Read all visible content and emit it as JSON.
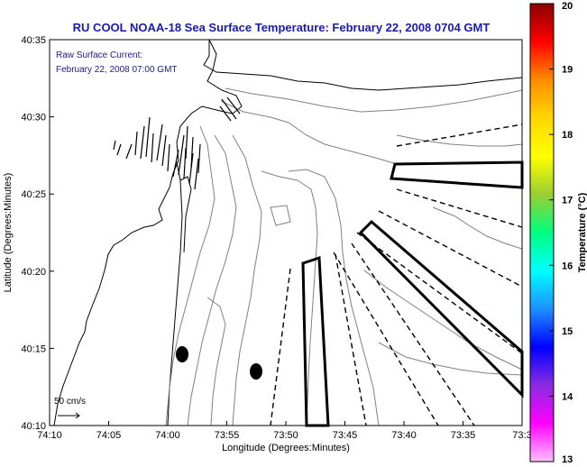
{
  "title": "RU COOL  NOAA-18  Sea Surface Temperature:  February 22, 2008 0704 GMT",
  "overlay": {
    "line1": "Raw Surface Current:",
    "line2": "February 22, 2008 07:00 GMT"
  },
  "scale_label": "50 cm/s",
  "axes": {
    "xlabel": "Longitude (Degrees:Minutes)",
    "ylabel": "Latitude (Degrees:Minutes)",
    "x_ticks": [
      "74:10",
      "74:05",
      "74:00",
      "73:55",
      "73:50",
      "73:45",
      "73:40",
      "73:35",
      "73:3"
    ],
    "y_ticks": [
      "40:35",
      "40:30",
      "40:25",
      "40:20",
      "40:15",
      "40:10"
    ]
  },
  "colorbar": {
    "label": "Temperature (°C)",
    "ticks": [
      "20",
      "19",
      "18",
      "17",
      "16",
      "15",
      "14",
      "13"
    ],
    "colors": [
      "#8b0000",
      "#ff0000",
      "#ff8c00",
      "#ffd700",
      "#ffff00",
      "#9acd32",
      "#00ff7f",
      "#00ffff",
      "#1e90ff",
      "#0000ff",
      "#8a2be2",
      "#ff00ff",
      "#ffc0ff"
    ]
  },
  "chart_data": {
    "type": "map",
    "title": "RU COOL  NOAA-18  Sea Surface Temperature:  February 22, 2008 0704 GMT",
    "xlabel": "Longitude (Degrees:Minutes)",
    "ylabel": "Latitude (Degrees:Minutes)",
    "x_range": [
      "74:10",
      "73:3"
    ],
    "y_range": [
      "40:10",
      "40:35"
    ],
    "colorbar_range": [
      13,
      20
    ],
    "colorbar_units": "°C"
  }
}
